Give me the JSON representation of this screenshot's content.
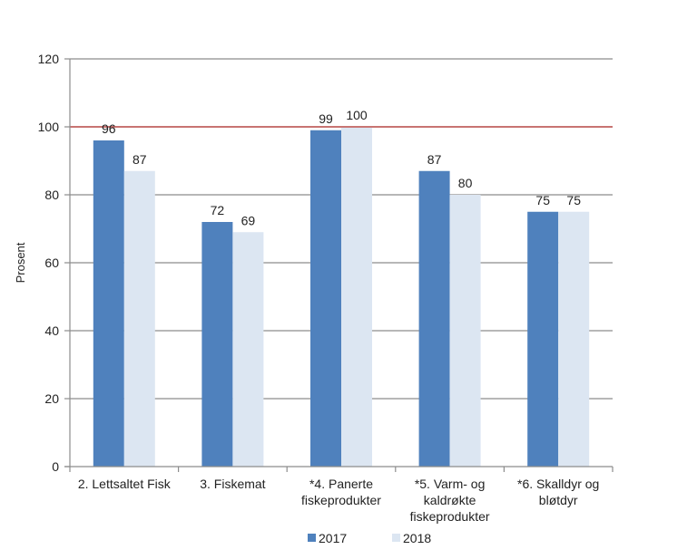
{
  "chart_data": {
    "type": "bar",
    "title": "",
    "xlabel": "",
    "ylabel": "Prosent",
    "ylim": [
      0,
      120
    ],
    "yticks": [
      0,
      20,
      40,
      60,
      80,
      100,
      120
    ],
    "grid": true,
    "legend_position": "bottom",
    "categories": [
      "2. Lettsaltet Fisk",
      "3. Fiskemat",
      "*4. Panerte fiskeprodukter",
      "*5. Varm- og kaldrøkte fiskeprodukter",
      "*6. Skalldyr og bløtdyr"
    ],
    "category_lines": [
      [
        "2. Lettsaltet Fisk"
      ],
      [
        "3. Fiskemat"
      ],
      [
        "*4. Panerte",
        "fiskeprodukter"
      ],
      [
        "*5. Varm- og",
        "kaldrøkte",
        "fiskeprodukter"
      ],
      [
        "*6. Skalldyr og",
        "bløtdyr"
      ]
    ],
    "series": [
      {
        "name": "2017",
        "color": "#4f81bd",
        "values": [
          96,
          72,
          99,
          87,
          75
        ]
      },
      {
        "name": "2018",
        "color": "#dce6f2",
        "values": [
          87,
          69,
          100,
          80,
          75
        ]
      }
    ],
    "reference_line": {
      "value": 100,
      "color": "#c0504d"
    },
    "annotations": [
      "Data labels shown above each bar"
    ]
  }
}
